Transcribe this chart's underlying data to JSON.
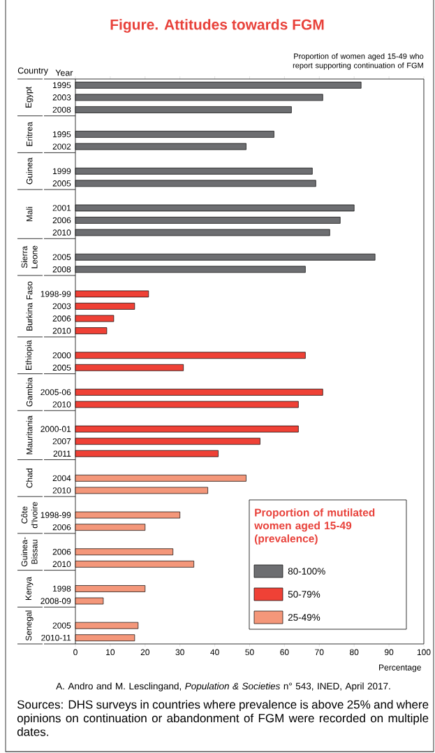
{
  "chart_data": {
    "type": "bar",
    "orientation": "horizontal",
    "title": "Figure. Attitudes towards FGM",
    "subtitle": "Proportion of women aged 15-49 who report supporting continuation of FGM",
    "xlabel": "Percentage",
    "ylabel": "Year",
    "legend_title": "Proportion of mutilated women aged 15-49 (prevalence)",
    "categories": [
      "1995",
      "2003",
      "2008",
      null,
      "1995",
      "2002",
      null,
      "1999",
      "2005",
      null,
      "2001",
      "2006",
      "2010",
      null,
      "2005",
      "2008",
      null,
      "1998-99",
      "2003",
      "2006",
      "2010",
      null,
      "2000",
      "2005",
      null,
      "2005-06",
      "2010",
      null,
      "2000-01",
      "2007",
      "2011",
      null,
      "2004",
      "2010",
      null,
      "1998-99",
      "2006",
      null,
      "2006",
      "2010",
      null,
      "1998",
      "2008-09",
      null,
      "2005",
      "2010-11"
    ],
    "series": [
      {
        "name": "80-100%",
        "color": "#6d6e71",
        "values": [
          82,
          71,
          62,
          null,
          57,
          49,
          null,
          68,
          69,
          null,
          80,
          76,
          73,
          null,
          86,
          66,
          null,
          null,
          null,
          null,
          null,
          null,
          null,
          null,
          null,
          null,
          null,
          null,
          null,
          null,
          null,
          null,
          null,
          null,
          null,
          null,
          null,
          null,
          null,
          null,
          null,
          null,
          null,
          null,
          null,
          null
        ]
      },
      {
        "name": "50-79%",
        "color": "#ef4136",
        "values": [
          null,
          null,
          null,
          null,
          null,
          null,
          null,
          null,
          null,
          null,
          null,
          null,
          null,
          null,
          null,
          null,
          null,
          21,
          17,
          11,
          9,
          null,
          66,
          31,
          null,
          71,
          64,
          null,
          64,
          53,
          41,
          null,
          null,
          null,
          null,
          null,
          null,
          null,
          null,
          null,
          null,
          null,
          null,
          null,
          null,
          null
        ]
      },
      {
        "name": "25-49%",
        "color": "#f4977a",
        "values": [
          null,
          null,
          null,
          null,
          null,
          null,
          null,
          null,
          null,
          null,
          null,
          null,
          null,
          null,
          null,
          null,
          null,
          null,
          null,
          null,
          null,
          null,
          null,
          null,
          null,
          null,
          null,
          null,
          null,
          null,
          null,
          null,
          49,
          38,
          null,
          30,
          20,
          null,
          28,
          34,
          null,
          20,
          8,
          null,
          18,
          17
        ]
      }
    ],
    "xlim": [
      0,
      100
    ],
    "xticks": [
      0,
      10,
      20,
      30,
      40,
      50,
      60,
      70,
      80,
      90,
      100
    ],
    "legend": "bottom right",
    "grid": false,
    "annotations": [
      "Country",
      "Egypt",
      "Eritrea",
      "Guinea",
      "Mali",
      "Sierra Leone",
      "Burkina Faso",
      "Ethiopia",
      "Gambia",
      "Mauritania",
      "Chad",
      "Côte d'Ivoire",
      "Guinea-Bissau",
      "Kenya",
      "Senegal",
      "A. Andro and M. Lesclingand, *Population & Societies* n° 543, INED, April 2017.",
      "Sources: DHS surveys in countries where prevalence is above 25% and where opinions on continuation or abandonment of FGM were recorded on multiple dates."
    ]
  }
}
